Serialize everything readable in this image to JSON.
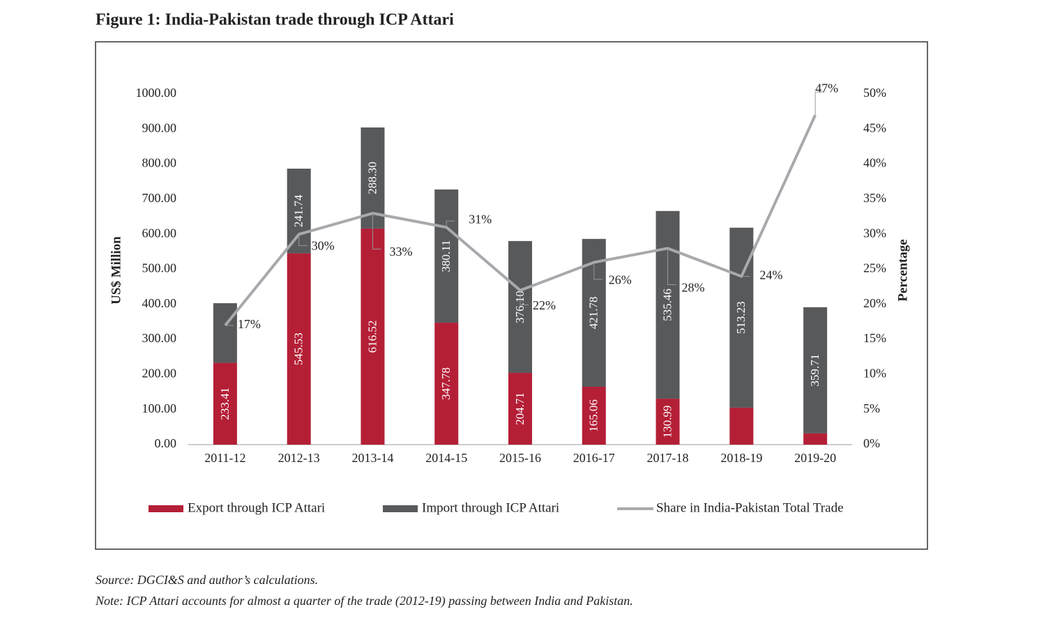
{
  "chart_data": {
    "type": "bar-line",
    "title": "Figure 1: India-Pakistan trade through ICP Attari",
    "y_label": "US$ Million",
    "y2_label": "Percentage",
    "categories": [
      "2011-12",
      "2012-13",
      "2013-14",
      "2014-15",
      "2015-16",
      "2016-17",
      "2017-18",
      "2018-19",
      "2019-20"
    ],
    "series": [
      {
        "name": "Export through ICP Attari",
        "type": "bar",
        "color": "#b41f36",
        "values": [
          233.41,
          545.53,
          616.52,
          347.78,
          204.71,
          165.06,
          130.99,
          105.59,
          32.27
        ],
        "value_labels": [
          "233.41",
          "545.53",
          "616.52",
          "347.78",
          "204.71",
          "165.06",
          "130.99",
          "105.59",
          "32.27"
        ]
      },
      {
        "name": "Import through ICP Attari",
        "type": "bar",
        "color": "#58595b",
        "values": [
          170,
          241.74,
          288.3,
          380.11,
          376.1,
          421.78,
          535.46,
          513.23,
          359.71
        ],
        "value_labels": [
          null,
          "241.74",
          "288.30",
          "380.11",
          "376.10",
          "421.78",
          "535.46",
          "513.23",
          "359.71"
        ]
      },
      {
        "name": "Share in India-Pakistan Total Trade",
        "type": "line",
        "axis": "y2",
        "color": "#a7a9ac",
        "values": [
          17,
          30,
          33,
          31,
          22,
          26,
          28,
          24,
          47
        ],
        "value_labels": [
          "17%",
          "30%",
          "33%",
          "31%",
          "22%",
          "26%",
          "28%",
          "24%",
          "47%"
        ]
      }
    ],
    "ylim": [
      0,
      1000
    ],
    "yticks": [
      {
        "value": 0,
        "label": "0.00"
      },
      {
        "value": 100,
        "label": "100.00"
      },
      {
        "value": 200,
        "label": "200.00"
      },
      {
        "value": 300,
        "label": "300.00"
      },
      {
        "value": 400,
        "label": "400.00"
      },
      {
        "value": 500,
        "label": "500.00"
      },
      {
        "value": 600,
        "label": "600.00"
      },
      {
        "value": 700,
        "label": "700.00"
      },
      {
        "value": 800,
        "label": "800.00"
      },
      {
        "value": 900,
        "label": "900.00"
      },
      {
        "value": 1000,
        "label": "1000.00"
      }
    ],
    "y2lim": [
      0,
      50
    ],
    "y2ticks": [
      {
        "value": 0,
        "label": "0%"
      },
      {
        "value": 5,
        "label": "5%"
      },
      {
        "value": 10,
        "label": "10%"
      },
      {
        "value": 15,
        "label": "15%"
      },
      {
        "value": 20,
        "label": "20%"
      },
      {
        "value": 25,
        "label": "25%"
      },
      {
        "value": 30,
        "label": "30%"
      },
      {
        "value": 35,
        "label": "35%"
      },
      {
        "value": 40,
        "label": "40%"
      },
      {
        "value": 45,
        "label": "45%"
      },
      {
        "value": 50,
        "label": "50%"
      }
    ],
    "grid": false,
    "legend": "bottom",
    "source": "Source: DGCI&S and author’s calculations.",
    "note": "Note: ICP Attari accounts for almost a quarter of the trade (2012-19) passing between India and Pakistan."
  }
}
